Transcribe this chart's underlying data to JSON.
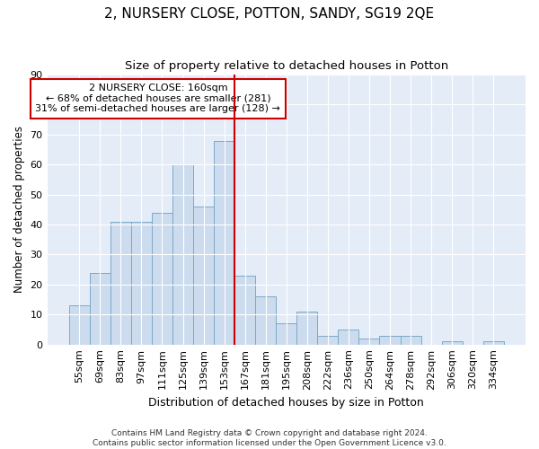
{
  "title": "2, NURSERY CLOSE, POTTON, SANDY, SG19 2QE",
  "subtitle": "Size of property relative to detached houses in Potton",
  "xlabel": "Distribution of detached houses by size in Potton",
  "ylabel": "Number of detached properties",
  "categories": [
    "55sqm",
    "69sqm",
    "83sqm",
    "97sqm",
    "111sqm",
    "125sqm",
    "139sqm",
    "153sqm",
    "167sqm",
    "181sqm",
    "195sqm",
    "208sqm",
    "222sqm",
    "236sqm",
    "250sqm",
    "264sqm",
    "278sqm",
    "292sqm",
    "306sqm",
    "320sqm",
    "334sqm"
  ],
  "values": [
    13,
    24,
    41,
    41,
    44,
    60,
    46,
    68,
    23,
    16,
    7,
    11,
    3,
    5,
    2,
    3,
    3,
    0,
    1,
    0,
    1
  ],
  "bar_color": "#ccdcee",
  "bar_edge_color": "#7aaac8",
  "property_line_color": "#cc0000",
  "property_line_index": 8,
  "annotation_text": "2 NURSERY CLOSE: 160sqm\n← 68% of detached houses are smaller (281)\n31% of semi-detached houses are larger (128) →",
  "annotation_box_facecolor": "#ffffff",
  "annotation_box_edgecolor": "#cc0000",
  "footer_line1": "Contains HM Land Registry data © Crown copyright and database right 2024.",
  "footer_line2": "Contains public sector information licensed under the Open Government Licence v3.0.",
  "ylim": [
    0,
    90
  ],
  "yticks": [
    0,
    10,
    20,
    30,
    40,
    50,
    60,
    70,
    80,
    90
  ],
  "background_color": "#e4ecf8",
  "title_fontsize": 11,
  "subtitle_fontsize": 9.5,
  "xlabel_fontsize": 9,
  "ylabel_fontsize": 8.5,
  "tick_fontsize": 8,
  "footer_fontsize": 6.5,
  "annotation_fontsize": 8
}
